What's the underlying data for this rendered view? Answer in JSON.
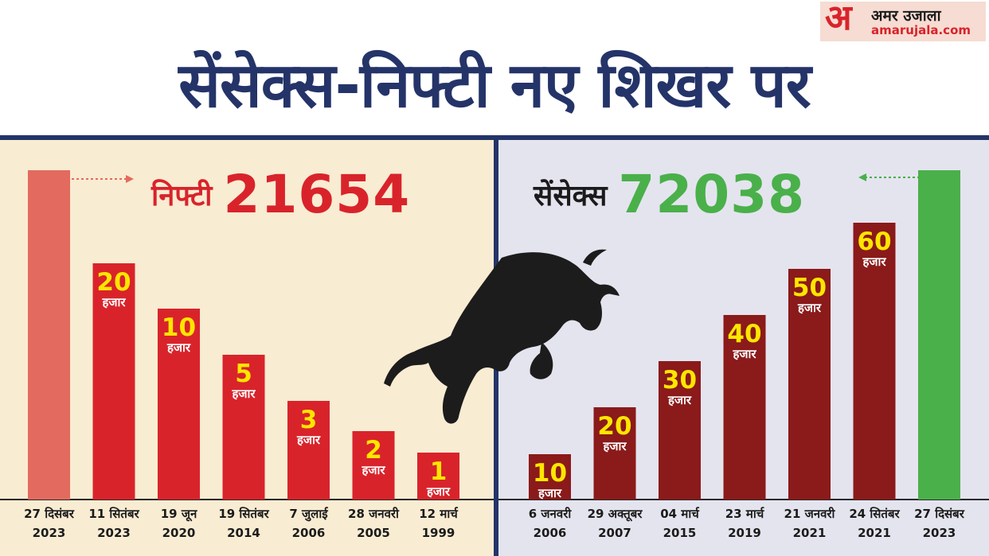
{
  "header": {
    "title": "सेंसेक्स-निफ्टी नए शिखर पर",
    "logo_mark": "अ",
    "logo_name": "अमर उजाला",
    "logo_url": "amarujala.com"
  },
  "colors": {
    "title_navy": "#243469",
    "nifty_red": "#d9232b",
    "nifty_latest": "#e36a5e",
    "sensex_maroon": "#8b1a1a",
    "sensex_green": "#4ab04a",
    "value_yellow": "#ffe600"
  },
  "icons": [
    "bull-silhouette-icon",
    "arrow-right-icon",
    "arrow-left-icon"
  ],
  "chart_data": [
    {
      "type": "bar",
      "series_label": "निफ्टी",
      "headline_value": "21654",
      "unit": "हजार",
      "categories": [
        "27 दिसंबर 2023",
        "11 सितंबर 2023",
        "19 जून 2020",
        "19 सितंबर 2014",
        "7 जुलाई 2006",
        "28 जनवरी 2005",
        "12 मार्च 1999"
      ],
      "date_lines": [
        [
          "27 दिसंबर",
          "2023"
        ],
        [
          "11 सितंबर",
          "2023"
        ],
        [
          "19 जून",
          "2020"
        ],
        [
          "19 सितंबर",
          "2014"
        ],
        [
          "7 जुलाई",
          "2006"
        ],
        [
          "28 जनवरी",
          "2005"
        ],
        [
          "12 मार्च",
          "1999"
        ]
      ],
      "values": [
        21654,
        20000,
        10000,
        5000,
        3000,
        2000,
        1000
      ],
      "value_labels": [
        "",
        "20",
        "10",
        "5",
        "3",
        "2",
        "1"
      ],
      "value_units": [
        "",
        "हजार",
        "हजार",
        "हजार",
        "हजार",
        "हजार",
        "हजार"
      ]
    },
    {
      "type": "bar",
      "series_label": "सेंसेक्स",
      "headline_value": "72038",
      "unit": "हजार",
      "categories": [
        "6 जनवरी 2006",
        "29 अक्तूबर 2007",
        "04 मार्च 2015",
        "23 मार्च 2019",
        "21 जनवरी 2021",
        "24 सितंबर 2021",
        "27 दिसंबर 2023"
      ],
      "date_lines": [
        [
          "6 जनवरी",
          "2006"
        ],
        [
          "29 अक्तूबर",
          "2007"
        ],
        [
          "04 मार्च",
          "2015"
        ],
        [
          "23 मार्च",
          "2019"
        ],
        [
          "21 जनवरी",
          "2021"
        ],
        [
          "24 सितंबर",
          "2021"
        ],
        [
          "27 दिसंबर",
          "2023"
        ]
      ],
      "values": [
        10000,
        20000,
        30000,
        40000,
        50000,
        60000,
        72038
      ],
      "value_labels": [
        "10",
        "20",
        "30",
        "40",
        "50",
        "60",
        ""
      ],
      "value_units": [
        "हजार",
        "हजार",
        "हजार",
        "हजार",
        "हजार",
        "हजार",
        ""
      ]
    }
  ]
}
